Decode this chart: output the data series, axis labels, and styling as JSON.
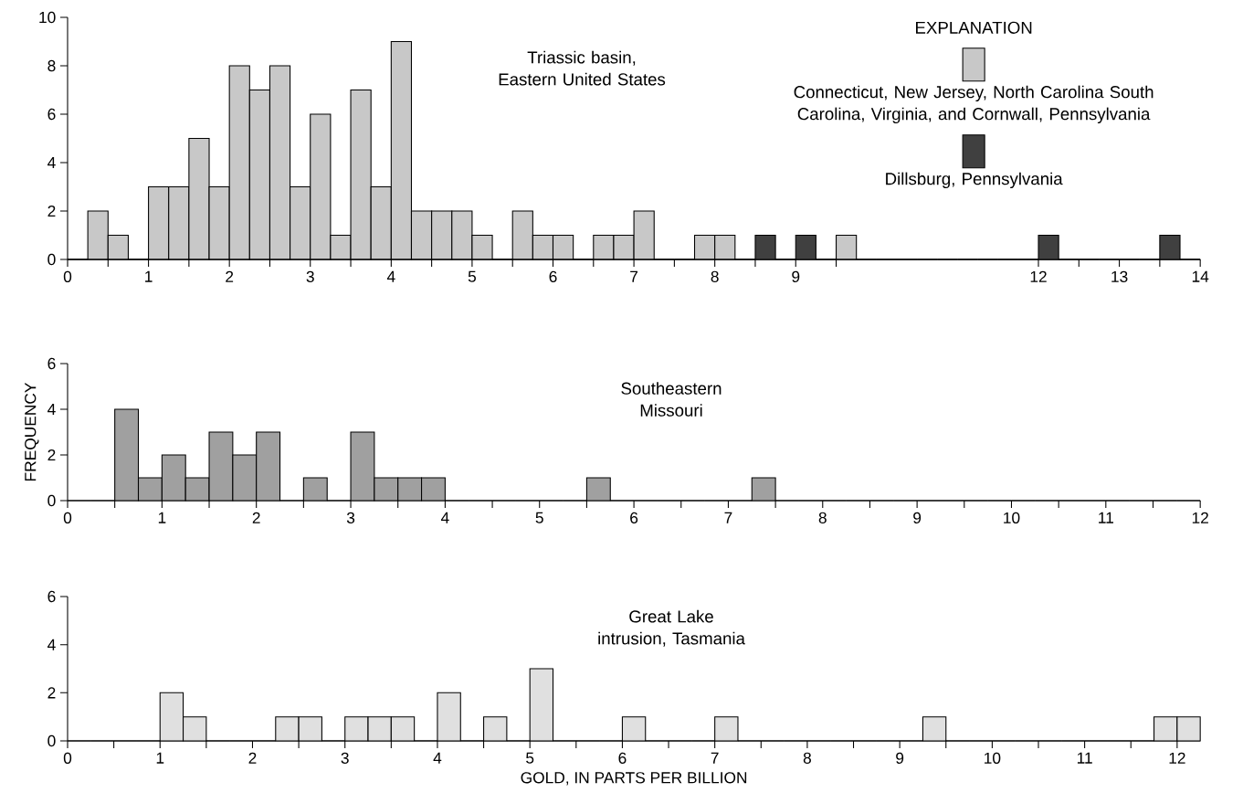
{
  "chart_data": [
    {
      "type": "histogram",
      "title": "Triassic basin, Eastern United States",
      "legend_title": "EXPLANATION",
      "legend": "top right",
      "bins": [
        0,
        0.25,
        0.5,
        0.75,
        1,
        1.25,
        1.5,
        1.75,
        2,
        2.25,
        2.5,
        2.75,
        3,
        3.25,
        3.5,
        3.75,
        4,
        4.25,
        4.5,
        4.75,
        5,
        5.25,
        5.5,
        5.75,
        6,
        6.25,
        6.5,
        6.75,
        7,
        7.25,
        7.5,
        7.75,
        8,
        8.25,
        8.5,
        8.75,
        9,
        9.25,
        9.5,
        9.75,
        10,
        10.25,
        10.5,
        10.75,
        11,
        11.25,
        11.5,
        11.75,
        12,
        12.25,
        12.5,
        12.75,
        13,
        13.25,
        13.5,
        13.75,
        14
      ],
      "series": [
        {
          "name": "Connecticut, New Jersey, North Carolina South Carolina, Virginia, and Cornwall, Pennsylvania",
          "color": "#c8c8c8",
          "values": [
            0,
            2,
            1,
            0,
            3,
            3,
            5,
            3,
            8,
            7,
            8,
            3,
            6,
            1,
            7,
            3,
            9,
            2,
            2,
            2,
            1,
            0,
            2,
            1,
            1,
            0,
            1,
            1,
            2,
            0,
            0,
            1,
            1,
            0,
            0,
            0,
            0,
            0,
            1,
            0,
            0,
            0,
            0,
            0,
            0,
            0,
            0,
            0,
            0,
            0,
            0,
            0,
            0,
            0,
            0,
            0
          ]
        },
        {
          "name": "Dillsburg, Pennsylvania",
          "color": "#404040",
          "values": [
            0,
            0,
            0,
            0,
            0,
            0,
            0,
            0,
            0,
            0,
            0,
            0,
            0,
            0,
            0,
            0,
            0,
            0,
            0,
            0,
            0,
            0,
            0,
            0,
            0,
            0,
            0,
            0,
            0,
            0,
            0,
            0,
            0,
            0,
            1,
            0,
            1,
            0,
            0,
            0,
            0,
            0,
            0,
            0,
            0,
            0,
            0,
            0,
            1,
            0,
            0,
            0,
            0,
            0,
            1,
            0
          ]
        }
      ],
      "xlim": [
        0,
        14
      ],
      "ylim": [
        0,
        10
      ],
      "yticks": [
        0,
        2,
        4,
        6,
        8,
        10
      ],
      "xticks": [
        0,
        {
          "value": 0.5,
          "label": null
        },
        1,
        {
          "value": 1.5,
          "label": null
        },
        2,
        {
          "value": 2.5,
          "label": null
        },
        3,
        {
          "value": 3.5,
          "label": null
        },
        4,
        {
          "value": 4.5,
          "label": null
        },
        5,
        {
          "value": 5.5,
          "label": null
        },
        6,
        {
          "value": 6.5,
          "label": null
        },
        7,
        {
          "value": 7.5,
          "label": null
        },
        8,
        {
          "value": 8.5,
          "label": null
        },
        9,
        {
          "value": 9.5,
          "label": null
        },
        12,
        {
          "value": 12.5,
          "label": null
        },
        13,
        {
          "value": 13.5,
          "label": null
        },
        14
      ]
    },
    {
      "type": "histogram",
      "title": "Southeastern Missouri",
      "ylabel": "FREQUENCY",
      "bins": [
        0,
        0.25,
        0.5,
        0.75,
        1,
        1.25,
        1.5,
        1.75,
        2,
        2.25,
        2.5,
        2.75,
        3,
        3.25,
        3.5,
        3.75,
        4,
        4.25,
        4.5,
        4.75,
        5,
        5.25,
        5.5,
        5.75,
        6,
        6.25,
        6.5,
        6.75,
        7,
        7.25,
        7.5,
        7.75,
        8,
        8.25,
        8.5,
        8.75,
        9,
        9.25,
        9.5,
        9.75,
        10,
        10.25,
        10.5,
        10.75,
        11,
        11.25,
        11.5,
        11.75,
        12
      ],
      "color": "#a0a0a0",
      "values": [
        0,
        0,
        4,
        1,
        2,
        1,
        3,
        2,
        3,
        0,
        1,
        0,
        3,
        1,
        1,
        1,
        0,
        0,
        0,
        0,
        0,
        0,
        1,
        0,
        0,
        0,
        0,
        0,
        0,
        1,
        0,
        0,
        0,
        0,
        0,
        0,
        0,
        0,
        0,
        0,
        0,
        0,
        0,
        0,
        0,
        0,
        0,
        0
      ],
      "xlim": [
        0,
        12
      ],
      "ylim": [
        0,
        6
      ],
      "yticks": [
        0,
        2,
        4,
        6
      ],
      "xticks": [
        0,
        {
          "value": 0.5,
          "label": null
        },
        1,
        {
          "value": 1.5,
          "label": null
        },
        2,
        {
          "value": 2.5,
          "label": null
        },
        3,
        {
          "value": 3.5,
          "label": null
        },
        4,
        {
          "value": 4.5,
          "label": null
        },
        5,
        {
          "value": 5.5,
          "label": null
        },
        6,
        {
          "value": 6.5,
          "label": null
        },
        7,
        {
          "value": 7.5,
          "label": null
        },
        8,
        {
          "value": 8.5,
          "label": null
        },
        9,
        {
          "value": 9.5,
          "label": null
        },
        10,
        {
          "value": 10.5,
          "label": null
        },
        11,
        {
          "value": 11.5,
          "label": null
        },
        12
      ]
    },
    {
      "type": "histogram",
      "title": "Great Lake intrusion, Tasmania",
      "xlabel": "GOLD, IN PARTS PER BILLION",
      "bins": [
        0,
        0.25,
        0.5,
        0.75,
        1,
        1.25,
        1.5,
        1.75,
        2,
        2.25,
        2.5,
        2.75,
        3,
        3.25,
        3.5,
        3.75,
        4,
        4.25,
        4.5,
        4.75,
        5,
        5.25,
        5.5,
        5.75,
        6,
        6.25,
        6.5,
        6.75,
        7,
        7.25,
        7.5,
        7.75,
        8,
        8.25,
        8.5,
        8.75,
        9,
        9.25,
        9.5,
        9.75,
        10,
        10.25,
        10.5,
        10.75,
        11,
        11.25,
        11.5,
        11.75,
        12,
        12.25
      ],
      "color": "#e0e0e0",
      "values": [
        0,
        0,
        0,
        0,
        2,
        1,
        0,
        0,
        0,
        1,
        1,
        0,
        1,
        1,
        1,
        0,
        2,
        0,
        1,
        0,
        3,
        0,
        0,
        0,
        1,
        0,
        0,
        0,
        1,
        0,
        0,
        0,
        0,
        0,
        0,
        0,
        0,
        1,
        0,
        0,
        0,
        0,
        0,
        0,
        0,
        0,
        0,
        1,
        1
      ],
      "xlim": [
        0,
        12.25
      ],
      "ylim": [
        0,
        6
      ],
      "yticks": [
        0,
        2,
        4,
        6
      ],
      "xticks": [
        0,
        {
          "value": 0.5,
          "label": null
        },
        1,
        {
          "value": 1.5,
          "label": null
        },
        2,
        {
          "value": 2.5,
          "label": null
        },
        3,
        {
          "value": 3.5,
          "label": null
        },
        4,
        {
          "value": 4.5,
          "label": null
        },
        5,
        {
          "value": 5.5,
          "label": null
        },
        6,
        {
          "value": 6.5,
          "label": null
        },
        7,
        {
          "value": 7.5,
          "label": null
        },
        8,
        {
          "value": 8.5,
          "label": null
        },
        9,
        {
          "value": 9.5,
          "label": null
        },
        10,
        {
          "value": 10.5,
          "label": null
        },
        11,
        {
          "value": 11.5,
          "label": null
        },
        12
      ]
    }
  ]
}
